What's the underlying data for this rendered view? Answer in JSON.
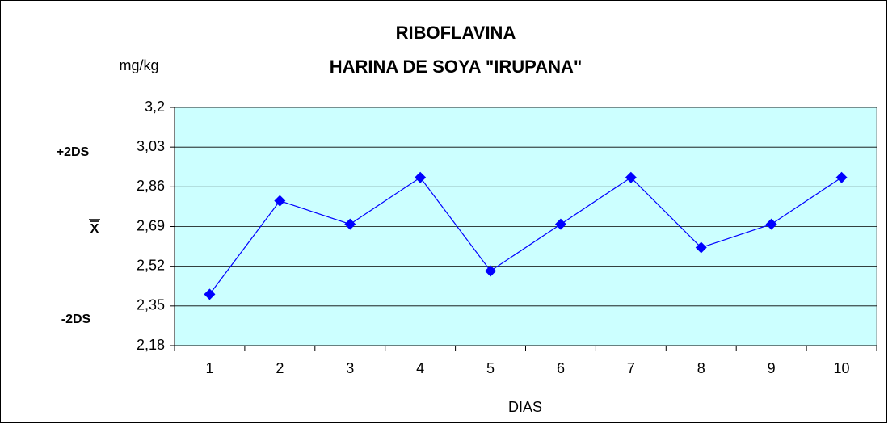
{
  "chart_data": {
    "type": "line",
    "title": [
      "RIBOFLAVINA",
      "HARINA DE SOYA \"IRUPANA\""
    ],
    "y_label": "mg/kg",
    "x_label": "DIAS",
    "annotations": [
      "+2DS",
      "X",
      "-2DS"
    ],
    "x": [
      1,
      2,
      3,
      4,
      5,
      6,
      7,
      8,
      9,
      10
    ],
    "series": [
      {
        "name": "RIBOFLAVINA",
        "color": "#0000ff",
        "values": [
          2.4,
          2.8,
          2.7,
          2.9,
          2.5,
          2.7,
          2.9,
          2.6,
          2.7,
          2.9
        ]
      }
    ],
    "ylim": [
      2.18,
      3.2
    ],
    "yticks": [
      {
        "value": 2.18,
        "label": "2,18"
      },
      {
        "value": 2.35,
        "label": "2,35"
      },
      {
        "value": 2.52,
        "label": "2,52"
      },
      {
        "value": 2.69,
        "label": "2,69"
      },
      {
        "value": 2.86,
        "label": "2,86"
      },
      {
        "value": 3.03,
        "label": "3,03"
      },
      {
        "value": 3.2,
        "label": "3,2"
      }
    ],
    "grid": true,
    "plot_background": "#ccffff"
  }
}
